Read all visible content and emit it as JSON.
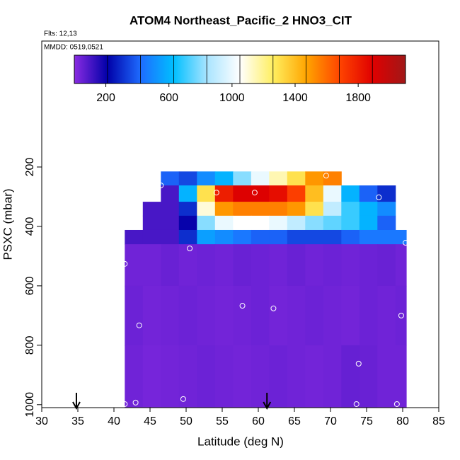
{
  "chart_data": {
    "type": "heatmap",
    "title": "ATOM4 Northeast_Pacific_2 HNO3_CIT",
    "annotations": [
      "Flts: 12,13",
      "MMDD: 0519,0521"
    ],
    "x_label": "Latitude (deg N)",
    "y_label": "PSXC (mbar)",
    "xlim": [
      30,
      85
    ],
    "xticks": [
      30,
      35,
      40,
      45,
      50,
      55,
      60,
      65,
      70,
      75,
      80,
      85
    ],
    "ylim": [
      1010,
      -224
    ],
    "yticks": [
      200,
      400,
      600,
      800,
      1000
    ],
    "zlim": [
      0,
      2100
    ],
    "zticks": [
      200,
      600,
      1000,
      1400,
      1800
    ],
    "colormap": [
      "#8a2be2",
      "#0000a8",
      "#1e6cff",
      "#00bfff",
      "#a8e4ff",
      "#ffffff",
      "#ffef60",
      "#ffa500",
      "#ff4500",
      "#e00000",
      "#a01818"
    ],
    "x_bins": [
      41.5,
      44,
      46.5,
      49,
      51.5,
      54,
      56.5,
      59,
      61.5,
      64,
      66.5,
      69,
      71.5,
      74,
      76.5,
      79,
      80.5
    ],
    "y_bins": [
      215,
      262,
      317,
      364,
      412,
      460,
      600,
      800,
      1010
    ],
    "values": [
      [
        null,
        null,
        400,
        350,
        500,
        600,
        800,
        1000,
        1150,
        1300,
        1500,
        1550,
        null,
        null,
        null,
        null
      ],
      [
        null,
        null,
        100,
        600,
        1300,
        1800,
        1900,
        1900,
        1850,
        1700,
        1400,
        1000,
        600,
        400,
        300,
        null
      ],
      [
        null,
        100,
        100,
        300,
        1100,
        1500,
        1550,
        1550,
        1550,
        1500,
        1300,
        900,
        700,
        600,
        500,
        null
      ],
      [
        null,
        100,
        100,
        200,
        800,
        1000,
        1050,
        1050,
        1000,
        900,
        800,
        750,
        700,
        600,
        400,
        null
      ],
      [
        100,
        100,
        100,
        300,
        550,
        500,
        450,
        400,
        400,
        350,
        350,
        350,
        400,
        450,
        450,
        450
      ],
      [
        40,
        40,
        50,
        40,
        45,
        40,
        50,
        45,
        40,
        50,
        40,
        45,
        40,
        45,
        50,
        40
      ],
      [
        45,
        35,
        40,
        45,
        40,
        35,
        40,
        45,
        35,
        40,
        45,
        40,
        35,
        45,
        40,
        45
      ],
      [
        40,
        30,
        35,
        40,
        45,
        40,
        35,
        40,
        45,
        40,
        35,
        40,
        55,
        50,
        40,
        40
      ]
    ],
    "points": {
      "x": [
        46.5,
        54.2,
        59.5,
        69.4,
        76.7,
        50.5,
        41.5,
        80.4,
        57.8,
        62.1,
        43.5,
        79.8,
        73.9,
        49.6,
        41.5,
        43,
        73.6,
        79.2
      ],
      "y": [
        262,
        286,
        286,
        229,
        302,
        474,
        526,
        455,
        667,
        676,
        733,
        700,
        862,
        981,
        998,
        993,
        998,
        998
      ]
    },
    "arrows_x": [
      34.8,
      61.2
    ]
  }
}
